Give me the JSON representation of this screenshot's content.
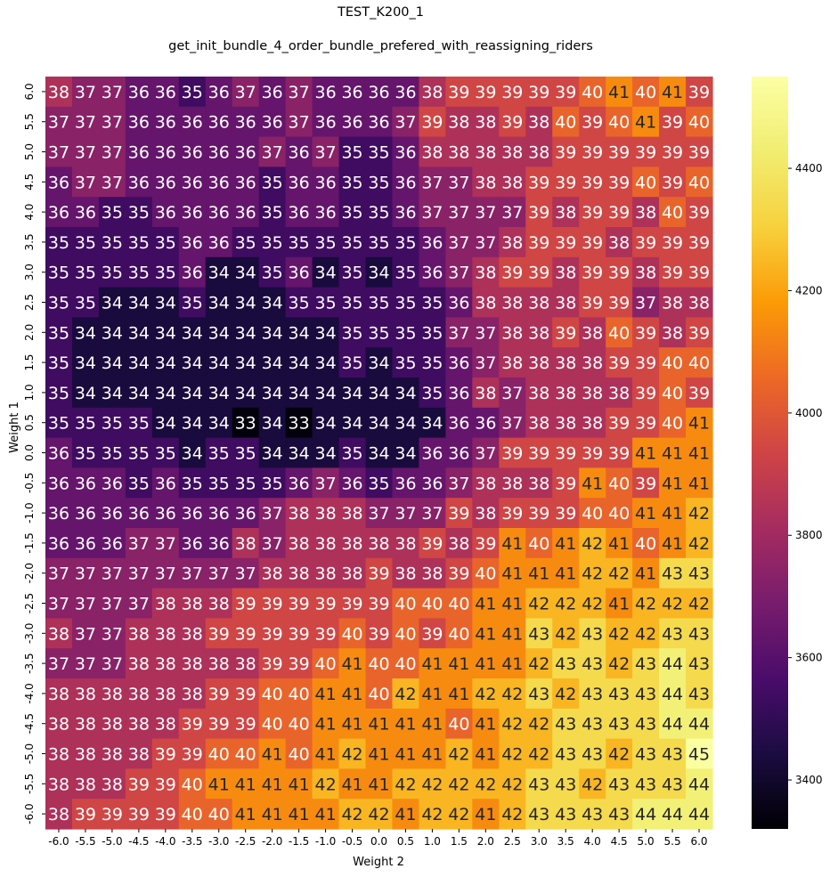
{
  "chart_data": {
    "type": "heatmap",
    "title": "TEST_K200_1",
    "subtitle": "get_init_bundle_4_order_bundle_prefered_with_reassigning_riders",
    "xlabel": "Weight 2",
    "ylabel": "Weight 1",
    "x_categories": [
      "-6.0",
      "-5.5",
      "-5.0",
      "-4.5",
      "-4.0",
      "-3.5",
      "-3.0",
      "-2.5",
      "-2.0",
      "-1.5",
      "-1.0",
      "-0.5",
      "0.0",
      "0.5",
      "1.0",
      "1.5",
      "2.0",
      "2.5",
      "3.0",
      "3.5",
      "4.0",
      "4.5",
      "5.0",
      "5.5",
      "6.0"
    ],
    "y_categories": [
      "6.0",
      "5.5",
      "5.0",
      "4.5",
      "4.0",
      "3.5",
      "3.0",
      "2.5",
      "2.0",
      "1.5",
      "1.0",
      "0.5",
      "0.0",
      "-0.5",
      "-1.0",
      "-1.5",
      "-2.0",
      "-2.5",
      "-3.0",
      "-3.5",
      "-4.0",
      "-4.5",
      "-5.0",
      "-5.5",
      "-6.0"
    ],
    "values": [
      [
        38,
        37,
        37,
        36,
        36,
        35,
        36,
        37,
        36,
        37,
        36,
        36,
        36,
        36,
        38,
        39,
        39,
        39,
        39,
        39,
        40,
        41,
        40,
        41,
        39
      ],
      [
        37,
        37,
        37,
        36,
        36,
        36,
        36,
        36,
        36,
        37,
        36,
        36,
        36,
        37,
        39,
        38,
        38,
        39,
        38,
        40,
        39,
        40,
        41,
        39,
        40
      ],
      [
        37,
        37,
        37,
        36,
        36,
        36,
        36,
        36,
        37,
        36,
        37,
        35,
        35,
        36,
        38,
        38,
        38,
        38,
        38,
        39,
        39,
        39,
        39,
        39,
        39
      ],
      [
        36,
        37,
        37,
        36,
        36,
        36,
        36,
        36,
        35,
        36,
        36,
        35,
        35,
        36,
        37,
        37,
        38,
        38,
        39,
        39,
        39,
        39,
        40,
        39,
        40
      ],
      [
        36,
        36,
        35,
        35,
        36,
        36,
        36,
        36,
        35,
        36,
        36,
        35,
        35,
        36,
        37,
        37,
        37,
        37,
        39,
        38,
        39,
        39,
        38,
        40,
        39
      ],
      [
        35,
        35,
        35,
        35,
        35,
        36,
        36,
        35,
        35,
        35,
        35,
        35,
        35,
        35,
        36,
        37,
        37,
        38,
        39,
        39,
        39,
        38,
        39,
        39,
        39
      ],
      [
        35,
        35,
        35,
        35,
        35,
        36,
        34,
        34,
        35,
        36,
        34,
        35,
        34,
        35,
        36,
        37,
        38,
        39,
        39,
        38,
        39,
        39,
        38,
        39,
        39
      ],
      [
        35,
        35,
        34,
        34,
        34,
        35,
        34,
        34,
        34,
        35,
        35,
        35,
        35,
        35,
        35,
        36,
        38,
        38,
        38,
        38,
        39,
        39,
        37,
        38,
        38
      ],
      [
        35,
        34,
        34,
        34,
        34,
        34,
        34,
        34,
        34,
        34,
        34,
        35,
        35,
        35,
        35,
        37,
        37,
        38,
        38,
        39,
        38,
        40,
        39,
        38,
        39
      ],
      [
        35,
        34,
        34,
        34,
        34,
        34,
        34,
        34,
        34,
        34,
        34,
        35,
        34,
        35,
        35,
        36,
        37,
        38,
        38,
        38,
        38,
        39,
        39,
        40,
        40
      ],
      [
        35,
        34,
        34,
        34,
        34,
        34,
        34,
        34,
        34,
        34,
        34,
        34,
        34,
        34,
        35,
        36,
        38,
        37,
        38,
        38,
        38,
        38,
        39,
        40,
        39
      ],
      [
        35,
        35,
        35,
        35,
        34,
        34,
        34,
        33,
        34,
        33,
        34,
        34,
        34,
        34,
        34,
        36,
        36,
        37,
        38,
        38,
        38,
        39,
        39,
        40,
        41
      ],
      [
        36,
        35,
        35,
        35,
        35,
        34,
        35,
        35,
        34,
        34,
        34,
        35,
        34,
        34,
        36,
        36,
        37,
        39,
        39,
        39,
        39,
        39,
        41,
        41,
        41
      ],
      [
        36,
        36,
        36,
        35,
        36,
        35,
        35,
        35,
        35,
        36,
        37,
        36,
        35,
        36,
        36,
        37,
        38,
        38,
        38,
        39,
        41,
        40,
        39,
        41,
        41
      ],
      [
        36,
        36,
        36,
        36,
        36,
        36,
        36,
        36,
        37,
        38,
        38,
        38,
        37,
        37,
        37,
        39,
        38,
        39,
        39,
        39,
        40,
        40,
        41,
        41,
        42
      ],
      [
        36,
        36,
        36,
        37,
        37,
        36,
        36,
        38,
        37,
        38,
        38,
        38,
        38,
        38,
        39,
        38,
        39,
        41,
        40,
        41,
        42,
        41,
        40,
        41,
        42
      ],
      [
        37,
        37,
        37,
        37,
        37,
        37,
        37,
        37,
        38,
        38,
        38,
        38,
        39,
        38,
        38,
        39,
        40,
        41,
        41,
        41,
        42,
        42,
        41,
        43,
        43
      ],
      [
        37,
        37,
        37,
        37,
        38,
        38,
        38,
        39,
        39,
        39,
        39,
        39,
        39,
        40,
        40,
        40,
        41,
        41,
        42,
        42,
        42,
        41,
        42,
        42,
        42
      ],
      [
        38,
        37,
        37,
        38,
        38,
        38,
        39,
        39,
        39,
        39,
        39,
        40,
        39,
        40,
        39,
        40,
        41,
        41,
        43,
        42,
        43,
        42,
        42,
        43,
        43
      ],
      [
        37,
        37,
        37,
        38,
        38,
        38,
        38,
        38,
        39,
        39,
        40,
        41,
        40,
        40,
        41,
        41,
        41,
        41,
        42,
        43,
        43,
        42,
        43,
        44,
        43
      ],
      [
        38,
        38,
        38,
        38,
        38,
        38,
        39,
        39,
        40,
        40,
        41,
        41,
        40,
        42,
        41,
        41,
        42,
        42,
        43,
        42,
        43,
        43,
        43,
        44,
        43
      ],
      [
        38,
        38,
        38,
        38,
        38,
        39,
        39,
        39,
        40,
        40,
        41,
        41,
        41,
        41,
        41,
        40,
        41,
        42,
        42,
        43,
        43,
        43,
        43,
        44,
        44
      ],
      [
        38,
        38,
        38,
        38,
        39,
        39,
        40,
        40,
        41,
        40,
        41,
        42,
        41,
        41,
        41,
        42,
        41,
        42,
        42,
        43,
        43,
        42,
        43,
        43,
        45
      ],
      [
        38,
        38,
        38,
        39,
        39,
        40,
        41,
        41,
        41,
        41,
        42,
        41,
        41,
        42,
        42,
        42,
        42,
        42,
        43,
        43,
        42,
        43,
        43,
        43,
        44
      ],
      [
        38,
        39,
        39,
        39,
        39,
        40,
        40,
        41,
        41,
        41,
        41,
        42,
        42,
        41,
        42,
        42,
        41,
        42,
        43,
        43,
        43,
        43,
        44,
        44,
        44
      ]
    ],
    "colorbar": {
      "cmap": "inferno",
      "vmin": 3320,
      "vmax": 4550,
      "ticks": [
        "3400",
        "3600",
        "3800",
        "4000",
        "4200",
        "4400"
      ]
    },
    "grid": false
  }
}
